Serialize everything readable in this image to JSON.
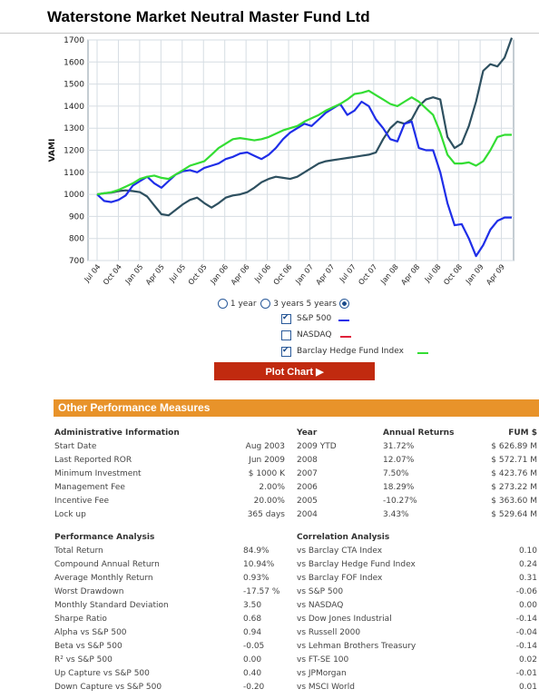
{
  "title": "Waterstone Market Neutral Master Fund Ltd",
  "chart_data": {
    "type": "line",
    "ylabel": "VAMI",
    "ylim": [
      700,
      1700
    ],
    "yticks": [
      700,
      800,
      900,
      1000,
      1100,
      1200,
      1300,
      1400,
      1500,
      1600,
      1700
    ],
    "xticks": [
      "Jul 04",
      "Oct 04",
      "Jan 05",
      "Apr 05",
      "Jul 05",
      "Oct 05",
      "Jan 06",
      "Apr 06",
      "Jul 06",
      "Oct 06",
      "Jan 07",
      "Apr 07",
      "Jul 07",
      "Oct 07",
      "Jan 08",
      "Apr 08",
      "Jul 08",
      "Oct 08",
      "Jan 09",
      "Apr 09"
    ],
    "grid": true,
    "series": [
      {
        "name": "Fund",
        "color": "#2e5060",
        "values": [
          1000,
          1005,
          1008,
          1015,
          1018,
          1015,
          1010,
          990,
          950,
          910,
          905,
          930,
          955,
          975,
          985,
          960,
          940,
          960,
          985,
          995,
          1000,
          1010,
          1030,
          1055,
          1070,
          1080,
          1075,
          1070,
          1080,
          1100,
          1120,
          1140,
          1150,
          1155,
          1160,
          1165,
          1170,
          1175,
          1180,
          1190,
          1250,
          1300,
          1330,
          1320,
          1340,
          1400,
          1430,
          1440,
          1430,
          1260,
          1210,
          1230,
          1310,
          1420,
          1560,
          1590,
          1580,
          1620,
          1710
        ]
      },
      {
        "name": "S&P 500",
        "color": "#1f2ee8",
        "values": [
          1000,
          970,
          965,
          975,
          995,
          1040,
          1060,
          1080,
          1050,
          1030,
          1060,
          1090,
          1105,
          1110,
          1100,
          1120,
          1130,
          1140,
          1160,
          1170,
          1185,
          1190,
          1175,
          1160,
          1180,
          1210,
          1250,
          1280,
          1300,
          1320,
          1310,
          1340,
          1370,
          1390,
          1410,
          1360,
          1380,
          1420,
          1400,
          1340,
          1300,
          1250,
          1240,
          1320,
          1330,
          1210,
          1200,
          1200,
          1100,
          960,
          860,
          865,
          800,
          720,
          770,
          840,
          880,
          895,
          895
        ]
      },
      {
        "name": "Barclay Hedge Fund Index",
        "color": "#33dd33",
        "values": [
          1000,
          1005,
          1010,
          1020,
          1035,
          1050,
          1070,
          1080,
          1085,
          1075,
          1070,
          1090,
          1110,
          1130,
          1140,
          1150,
          1180,
          1210,
          1230,
          1250,
          1255,
          1250,
          1245,
          1250,
          1260,
          1275,
          1290,
          1300,
          1310,
          1330,
          1345,
          1360,
          1380,
          1395,
          1410,
          1430,
          1455,
          1460,
          1470,
          1450,
          1430,
          1410,
          1400,
          1420,
          1440,
          1420,
          1390,
          1360,
          1280,
          1180,
          1140,
          1140,
          1145,
          1130,
          1150,
          1200,
          1260,
          1270,
          1270
        ]
      }
    ]
  },
  "controls": {
    "periods": [
      "1 year",
      "3 years",
      "5 years"
    ],
    "selected_period": "5 years",
    "indices": [
      {
        "label": "S&P 500",
        "checked": true,
        "color": "#1f2ee8"
      },
      {
        "label": "NASDAQ",
        "checked": false,
        "color": "#e0203a"
      },
      {
        "label": "Barclay Hedge Fund Index",
        "checked": true,
        "color": "#33dd33"
      }
    ],
    "plot_button": "Plot Chart ▶"
  },
  "perf": {
    "heading": "Other Performance Measures",
    "admin": {
      "title": "Administrative Information",
      "rows": [
        {
          "label": "Start Date",
          "value": "Aug 2003"
        },
        {
          "label": "Last Reported ROR",
          "value": "Jun 2009"
        },
        {
          "label": "Minimum Investment",
          "value": "$ 1000 K"
        },
        {
          "label": "Management Fee",
          "value": "2.00%"
        },
        {
          "label": "Incentive Fee",
          "value": "20.00%"
        },
        {
          "label": "Lock up",
          "value": "365 days"
        }
      ]
    },
    "returns": {
      "col_year": "Year",
      "col_ret": "Annual Returns",
      "col_fum": "FUM $",
      "rows": [
        {
          "year": "2009 YTD",
          "ret": "31.72%",
          "fum": "$ 626.89 M"
        },
        {
          "year": "2008",
          "ret": "12.07%",
          "fum": "$ 572.71 M"
        },
        {
          "year": "2007",
          "ret": "7.50%",
          "fum": "$ 423.76 M"
        },
        {
          "year": "2006",
          "ret": "18.29%",
          "fum": "$ 273.22 M"
        },
        {
          "year": "2005",
          "ret": "-10.27%",
          "fum": "$ 363.60 M"
        },
        {
          "year": "2004",
          "ret": "3.43%",
          "fum": "$ 529.64 M"
        }
      ]
    },
    "analysis": {
      "title": "Performance Analysis",
      "rows": [
        {
          "label": "Total Return",
          "value": "84.9%"
        },
        {
          "label": "Compound Annual Return",
          "value": "10.94%"
        },
        {
          "label": "Average Monthly Return",
          "value": "0.93%"
        },
        {
          "label": "Worst Drawdown",
          "value": "-17.57 %"
        },
        {
          "label": "Monthly Standard Deviation",
          "value": "3.50"
        },
        {
          "label": "Sharpe Ratio",
          "value": "0.68"
        },
        {
          "label": "Alpha vs S&P 500",
          "value": "0.94"
        },
        {
          "label": "Beta vs S&P 500",
          "value": "-0.05"
        },
        {
          "label": "R² vs S&P 500",
          "value": "0.00"
        },
        {
          "label": "Up Capture vs S&P 500",
          "value": "0.40"
        },
        {
          "label": "Down Capture vs S&P 500",
          "value": "-0.20"
        }
      ]
    },
    "correlation": {
      "title": "Correlation Analysis",
      "rows": [
        {
          "label": "vs Barclay CTA Index",
          "value": "0.10"
        },
        {
          "label": "vs Barclay Hedge Fund Index",
          "value": "0.24"
        },
        {
          "label": "vs Barclay FOF Index",
          "value": "0.31"
        },
        {
          "label": "vs S&P 500",
          "value": "-0.06"
        },
        {
          "label": "vs NASDAQ",
          "value": "0.00"
        },
        {
          "label": "vs Dow Jones Industrial",
          "value": "-0.14"
        },
        {
          "label": "vs Russell 2000",
          "value": "-0.04"
        },
        {
          "label": "vs Lehman Brothers Treasury",
          "value": "-0.14"
        },
        {
          "label": "vs FT-SE 100",
          "value": "0.02"
        },
        {
          "label": "vs JPMorgan",
          "value": "-0.01"
        },
        {
          "label": "vs MSCI World",
          "value": "0.01"
        }
      ]
    }
  }
}
